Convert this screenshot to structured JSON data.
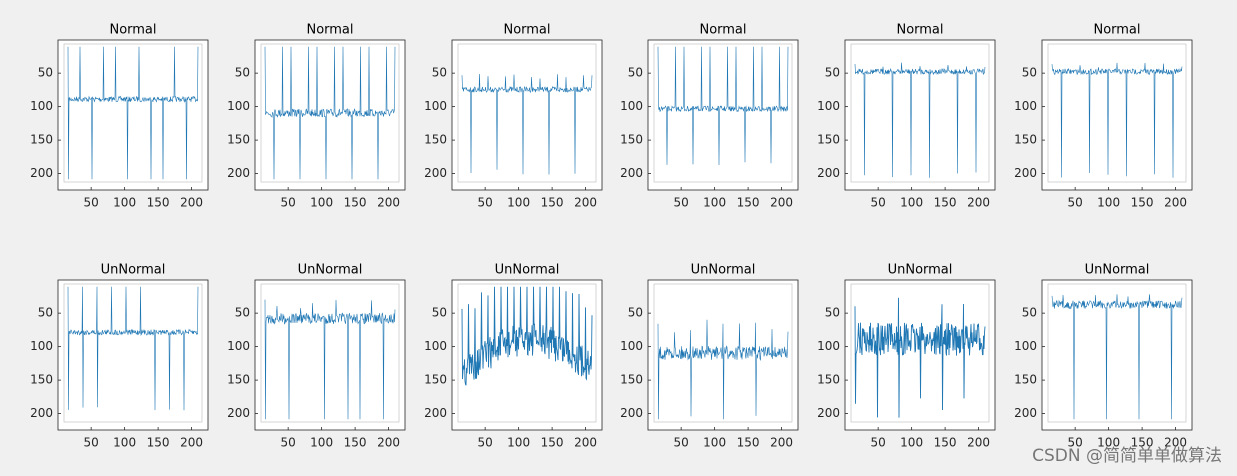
{
  "chart_data": [
    {
      "type": "image",
      "title": "Normal",
      "xlim": [
        0.5,
        224.5
      ],
      "ylim": [
        0.5,
        224.5
      ],
      "y_direction": "reverse",
      "xticks": [
        50,
        100,
        150,
        200
      ],
      "yticks": [
        50,
        100,
        150,
        200
      ]
    },
    {
      "type": "image",
      "title": "Normal",
      "xlim": [
        0.5,
        224.5
      ],
      "ylim": [
        0.5,
        224.5
      ],
      "y_direction": "reverse",
      "xticks": [
        50,
        100,
        150,
        200
      ],
      "yticks": [
        50,
        100,
        150,
        200
      ]
    },
    {
      "type": "image",
      "title": "Normal",
      "xlim": [
        0.5,
        224.5
      ],
      "ylim": [
        0.5,
        224.5
      ],
      "y_direction": "reverse",
      "xticks": [
        50,
        100,
        150,
        200
      ],
      "yticks": [
        50,
        100,
        150,
        200
      ]
    },
    {
      "type": "image",
      "title": "Normal",
      "xlim": [
        0.5,
        224.5
      ],
      "ylim": [
        0.5,
        224.5
      ],
      "y_direction": "reverse",
      "xticks": [
        50,
        100,
        150,
        200
      ],
      "yticks": [
        50,
        100,
        150,
        200
      ]
    },
    {
      "type": "image",
      "title": "Normal",
      "xlim": [
        0.5,
        224.5
      ],
      "ylim": [
        0.5,
        224.5
      ],
      "y_direction": "reverse",
      "xticks": [
        50,
        100,
        150,
        200
      ],
      "yticks": [
        50,
        100,
        150,
        200
      ]
    },
    {
      "type": "image",
      "title": "Normal",
      "xlim": [
        0.5,
        224.5
      ],
      "ylim": [
        0.5,
        224.5
      ],
      "y_direction": "reverse",
      "xticks": [
        50,
        100,
        150,
        200
      ],
      "yticks": [
        50,
        100,
        150,
        200
      ]
    },
    {
      "type": "image",
      "title": "UnNormal",
      "xlim": [
        0.5,
        224.5
      ],
      "ylim": [
        0.5,
        224.5
      ],
      "y_direction": "reverse",
      "xticks": [
        50,
        100,
        150,
        200
      ],
      "yticks": [
        50,
        100,
        150,
        200
      ]
    },
    {
      "type": "image",
      "title": "UnNormal",
      "xlim": [
        0.5,
        224.5
      ],
      "ylim": [
        0.5,
        224.5
      ],
      "y_direction": "reverse",
      "xticks": [
        50,
        100,
        150,
        200
      ],
      "yticks": [
        50,
        100,
        150,
        200
      ]
    },
    {
      "type": "image",
      "title": "UnNormal",
      "xlim": [
        0.5,
        224.5
      ],
      "ylim": [
        0.5,
        224.5
      ],
      "y_direction": "reverse",
      "xticks": [
        50,
        100,
        150,
        200
      ],
      "yticks": [
        50,
        100,
        150,
        200
      ]
    },
    {
      "type": "image",
      "title": "UnNormal",
      "xlim": [
        0.5,
        224.5
      ],
      "ylim": [
        0.5,
        224.5
      ],
      "y_direction": "reverse",
      "xticks": [
        50,
        100,
        150,
        200
      ],
      "yticks": [
        50,
        100,
        150,
        200
      ]
    },
    {
      "type": "image",
      "title": "UnNormal",
      "xlim": [
        0.5,
        224.5
      ],
      "ylim": [
        0.5,
        224.5
      ],
      "y_direction": "reverse",
      "xticks": [
        50,
        100,
        150,
        200
      ],
      "yticks": [
        50,
        100,
        150,
        200
      ]
    },
    {
      "type": "image",
      "title": "UnNormal",
      "xlim": [
        0.5,
        224.5
      ],
      "ylim": [
        0.5,
        224.5
      ],
      "y_direction": "reverse",
      "xticks": [
        50,
        100,
        150,
        200
      ],
      "yticks": [
        50,
        100,
        150,
        200
      ]
    }
  ],
  "watermark": "CSDN @简简单单做算法"
}
